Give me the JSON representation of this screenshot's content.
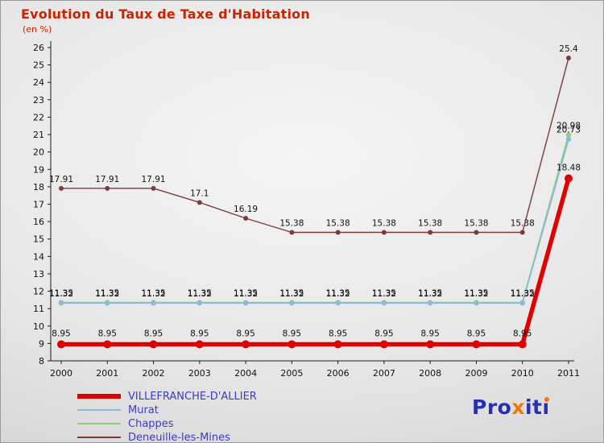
{
  "header": {
    "title": "Evolution du Taux de Taxe d'Habitation",
    "subtitle": "(en %)"
  },
  "chart_data": {
    "type": "line",
    "title": "Evolution du Taux de Taxe d'Habitation",
    "subtitle": "(en %)",
    "x": [
      2000,
      2001,
      2002,
      2003,
      2004,
      2005,
      2006,
      2007,
      2008,
      2009,
      2010,
      2011
    ],
    "xlabel": "",
    "ylabel": "",
    "ylim": [
      8,
      26
    ],
    "ytick_step": 1,
    "grid": false,
    "legend_position": "bottom-left",
    "series": [
      {
        "name": "VILLEFRANCHE-D'ALLIER",
        "color": "#e10000",
        "width": 5.5,
        "marker": 5,
        "values": [
          8.95,
          8.95,
          8.95,
          8.95,
          8.95,
          8.95,
          8.95,
          8.95,
          8.95,
          8.95,
          8.95,
          18.48
        ]
      },
      {
        "name": "Murat",
        "color": "#8abcd8",
        "width": 1.8,
        "marker": 3.2,
        "values": [
          11.32,
          11.32,
          11.32,
          11.32,
          11.32,
          11.32,
          11.32,
          11.32,
          11.32,
          11.32,
          11.32,
          20.73
        ]
      },
      {
        "name": "Chappes",
        "color": "#97c97c",
        "width": 1.8,
        "marker": 3.2,
        "values": [
          11.35,
          11.35,
          11.35,
          11.35,
          11.35,
          11.35,
          11.35,
          11.35,
          11.35,
          11.35,
          11.35,
          20.98
        ]
      },
      {
        "name": "Deneuille-les-Mines",
        "color": "#7b3b3b",
        "width": 1.4,
        "marker": 3,
        "values": [
          17.91,
          17.91,
          17.91,
          17.1,
          16.19,
          15.38,
          15.38,
          15.38,
          15.38,
          15.38,
          15.38,
          25.4
        ]
      }
    ]
  },
  "legend": {
    "text_color": "#3c3cbe",
    "items": [
      {
        "label": "VILLEFRANCHE-D'ALLIER",
        "color": "#e10000",
        "thickness": 6
      },
      {
        "label": "Murat",
        "color": "#8abcd8",
        "thickness": 2
      },
      {
        "label": "Chappes",
        "color": "#97c97c",
        "thickness": 2
      },
      {
        "label": "Deneuille-les-Mines",
        "color": "#7b3b3b",
        "thickness": 2
      }
    ]
  },
  "logo": {
    "segments": [
      {
        "text": "Pro",
        "color": "#2530b4"
      },
      {
        "text": "x",
        "color": "#f0780a"
      },
      {
        "text": "it",
        "color": "#2530b4"
      },
      {
        "text": "ı",
        "color": "#2530b4",
        "dot": "#f0780a"
      }
    ]
  },
  "colors": {
    "title": "#cc2200",
    "axis": "#1a1a1a",
    "label": "#111111"
  }
}
